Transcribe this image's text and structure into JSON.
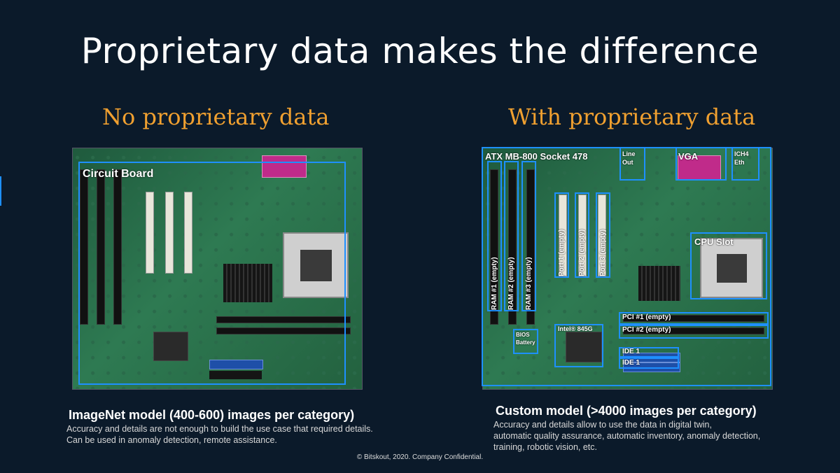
{
  "slide": {
    "title": "Proprietary data makes the difference",
    "footer": "© Bitskout, 2020. Company Confidential.",
    "accent_color": "#f0a030",
    "box_color": "#1e90ff"
  },
  "left": {
    "heading": "No proprietary  data",
    "image_alt": "motherboard photo",
    "box_label": "Circuit Board",
    "caption_title": "ImageNet model (400-600) images per category)",
    "caption_lines": [
      "Accuracy and details are not enough to build the use case that required details.",
      "Can be used in anomaly detection, remote assistance."
    ]
  },
  "right": {
    "heading": "With proprietary  data",
    "labels": {
      "board": "ATX MB-800 Socket 478",
      "line_out": "Line Out",
      "vga": "VGA",
      "ich4": "ICH4 Eth",
      "cpu": "CPU Slot",
      "ram1": "RAM #1 (empty)",
      "ram2": "RAM #2 (empty)",
      "ram3": "RAM #3 (empty)",
      "port1": "Port 1 (empty)",
      "port2": "Port 2 (empty)",
      "port3": "Port 3 (empty)",
      "pci1": "PCI  #1 (empty)",
      "pci2": "PCI  #2 (empty)",
      "intel": "Intel® 845G",
      "bios": "BIOS Battery",
      "ide1a": "IDE 1",
      "ide1b": "IDE 1"
    },
    "caption_title": "Custom model (>4000 images per category)",
    "caption_lines": [
      "Accuracy and details allow to use the data in digital twin,",
      "automatic quality assurance, automatic inventory, anomaly detection,",
      "training, robotic vision, etc."
    ]
  }
}
